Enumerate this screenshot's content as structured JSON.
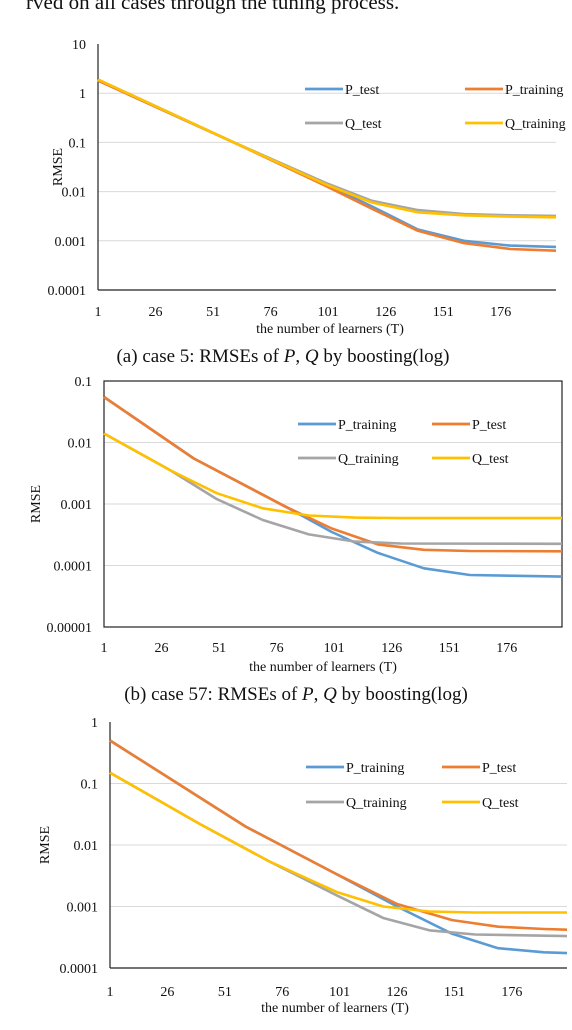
{
  "page": {
    "top_text": "rved on all cases through the tuning process."
  },
  "chart_data": [
    {
      "type": "line",
      "panel": "a",
      "ylabel": "RMSE",
      "xlabel": "the number of learners (T)",
      "x_ticks": [
        "1",
        "26",
        "51",
        "76",
        "101",
        "126",
        "151",
        "176"
      ],
      "y_ticks": [
        "10",
        "1",
        "0.1",
        "0.01",
        "0.001",
        "0.0001"
      ],
      "y_scale": "log",
      "xlim": [
        1,
        200
      ],
      "ylim": [
        0.0001,
        10
      ],
      "grid": true,
      "border": false,
      "legend_placement": "top-right",
      "caption": {
        "prefix": "(a) case 5: RMSEs of ",
        "var1": "P",
        "sep": ", ",
        "var2": "Q",
        "suffix": " by boosting(log)"
      },
      "series": [
        {
          "name": "P_test",
          "color": "#5b9bd5",
          "points": [
            [
              1,
              1.8
            ],
            [
              60,
              0.1
            ],
            [
              100,
              0.014
            ],
            [
              120,
              0.005
            ],
            [
              140,
              0.0017
            ],
            [
              160,
              0.001
            ],
            [
              180,
              0.0008
            ],
            [
              200,
              0.00075
            ]
          ]
        },
        {
          "name": "P_training",
          "color": "#ed7d31",
          "points": [
            [
              1,
              1.8
            ],
            [
              60,
              0.1
            ],
            [
              100,
              0.013
            ],
            [
              120,
              0.0045
            ],
            [
              140,
              0.0016
            ],
            [
              160,
              0.0009
            ],
            [
              180,
              0.00068
            ],
            [
              200,
              0.00063
            ]
          ]
        },
        {
          "name": "Q_test",
          "color": "#a5a5a5",
          "points": [
            [
              1,
              1.9
            ],
            [
              60,
              0.1
            ],
            [
              100,
              0.015
            ],
            [
              120,
              0.0065
            ],
            [
              140,
              0.0042
            ],
            [
              160,
              0.0035
            ],
            [
              180,
              0.0033
            ],
            [
              200,
              0.0032
            ]
          ]
        },
        {
          "name": "Q_training",
          "color": "#ffc000",
          "points": [
            [
              1,
              1.9
            ],
            [
              60,
              0.1
            ],
            [
              100,
              0.014
            ],
            [
              120,
              0.006
            ],
            [
              140,
              0.0038
            ],
            [
              160,
              0.0033
            ],
            [
              180,
              0.0031
            ],
            [
              200,
              0.003
            ]
          ]
        }
      ]
    },
    {
      "type": "line",
      "panel": "b",
      "ylabel": "RMSE",
      "xlabel": "the number of learners (T)",
      "x_ticks": [
        "1",
        "26",
        "51",
        "76",
        "101",
        "126",
        "151",
        "176"
      ],
      "y_ticks": [
        "0.1",
        "0.01",
        "0.001",
        "0.0001",
        "0.00001"
      ],
      "y_scale": "log",
      "xlim": [
        1,
        200
      ],
      "ylim": [
        1e-05,
        0.1
      ],
      "grid": true,
      "border": true,
      "legend_placement": "top-right",
      "caption": {
        "prefix": "(b) case 57: RMSEs of ",
        "var1": "P",
        "sep": ", ",
        "var2": "Q",
        "suffix": " by boosting(log)"
      },
      "series": [
        {
          "name": "P_training",
          "color": "#5b9bd5",
          "points": [
            [
              1,
              0.055
            ],
            [
              40,
              0.0055
            ],
            [
              80,
              0.0009
            ],
            [
              100,
              0.00035
            ],
            [
              120,
              0.00016
            ],
            [
              140,
              9e-05
            ],
            [
              160,
              7e-05
            ],
            [
              200,
              6.6e-05
            ]
          ]
        },
        {
          "name": "P_test",
          "color": "#ed7d31",
          "points": [
            [
              1,
              0.055
            ],
            [
              40,
              0.0055
            ],
            [
              80,
              0.0009
            ],
            [
              100,
              0.0004
            ],
            [
              120,
              0.00022
            ],
            [
              140,
              0.00018
            ],
            [
              160,
              0.000172
            ],
            [
              200,
              0.00017
            ]
          ]
        },
        {
          "name": "Q_training",
          "color": "#a5a5a5",
          "points": [
            [
              1,
              0.014
            ],
            [
              30,
              0.0035
            ],
            [
              50,
              0.0012
            ],
            [
              70,
              0.00055
            ],
            [
              90,
              0.00032
            ],
            [
              110,
              0.000245
            ],
            [
              130,
              0.000228
            ],
            [
              200,
              0.000225
            ]
          ]
        },
        {
          "name": "Q_test",
          "color": "#ffc000",
          "points": [
            [
              1,
              0.014
            ],
            [
              30,
              0.0035
            ],
            [
              50,
              0.0015
            ],
            [
              70,
              0.00085
            ],
            [
              90,
              0.00065
            ],
            [
              110,
              0.0006
            ],
            [
              130,
              0.00059
            ],
            [
              200,
              0.00059
            ]
          ]
        }
      ]
    },
    {
      "type": "line",
      "panel": "c",
      "ylabel": "RMSE",
      "xlabel": "the number of learners (T)",
      "x_ticks": [
        "1",
        "26",
        "51",
        "76",
        "101",
        "126",
        "151",
        "176"
      ],
      "y_ticks": [
        "1",
        "0.1",
        "0.01",
        "0.001",
        "0.0001"
      ],
      "y_scale": "log",
      "xlim": [
        1,
        200
      ],
      "ylim": [
        0.0001,
        1
      ],
      "grid": true,
      "border": false,
      "legend_placement": "top-right",
      "series": [
        {
          "name": "P_training",
          "color": "#5b9bd5",
          "points": [
            [
              1,
              0.5
            ],
            [
              60,
              0.02
            ],
            [
              100,
              0.0033
            ],
            [
              126,
              0.001
            ],
            [
              150,
              0.00036
            ],
            [
              170,
              0.00021
            ],
            [
              190,
              0.00018
            ],
            [
              200,
              0.000175
            ]
          ]
        },
        {
          "name": "P_test",
          "color": "#ed7d31",
          "points": [
            [
              1,
              0.5
            ],
            [
              60,
              0.02
            ],
            [
              100,
              0.0033
            ],
            [
              126,
              0.0011
            ],
            [
              150,
              0.0006
            ],
            [
              170,
              0.00047
            ],
            [
              190,
              0.00043
            ],
            [
              200,
              0.00042
            ]
          ]
        },
        {
          "name": "Q_training",
          "color": "#a5a5a5",
          "points": [
            [
              1,
              0.15
            ],
            [
              40,
              0.022
            ],
            [
              70,
              0.0055
            ],
            [
              100,
              0.0015
            ],
            [
              120,
              0.00065
            ],
            [
              140,
              0.00041
            ],
            [
              160,
              0.00035
            ],
            [
              200,
              0.00033
            ]
          ]
        },
        {
          "name": "Q_test",
          "color": "#ffc000",
          "points": [
            [
              1,
              0.15
            ],
            [
              40,
              0.022
            ],
            [
              70,
              0.0055
            ],
            [
              100,
              0.0017
            ],
            [
              120,
              0.001
            ],
            [
              140,
              0.00083
            ],
            [
              160,
              0.0008
            ],
            [
              200,
              0.0008
            ]
          ]
        }
      ]
    }
  ]
}
